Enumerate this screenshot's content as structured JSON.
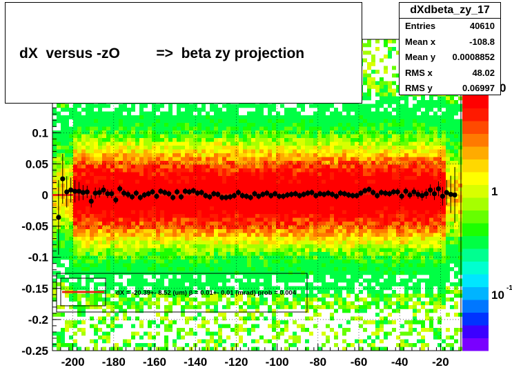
{
  "title": "dX  versus -zO         =>  beta zy projection",
  "stats": {
    "name": "dXdbeta_zy_17",
    "rows": [
      {
        "label": "Entries",
        "value": "40610"
      },
      {
        "label": "Mean x",
        "value": "-108.8"
      },
      {
        "label": "Mean y",
        "value": "0.0008852"
      },
      {
        "label": "RMS x",
        "value": "48.02"
      },
      {
        "label": "RMS y",
        "value": "0.06997"
      }
    ]
  },
  "legend": {
    "text": "dX = -20.39+- 8.52 (um) β =   0.01+- 0.01 (mrad) prob = 0.004"
  },
  "colors": {
    "fit_line": "#e8220c",
    "profile_points": "#000000",
    "frame": "#000000",
    "palette_low": "#7a00ff",
    "palette_high": "#ff0000"
  },
  "chart_data": {
    "type": "heatmap",
    "xlim": [
      -210,
      -10
    ],
    "ylim": [
      -0.25,
      0.25
    ],
    "x_ticks": [
      -200,
      -180,
      -160,
      -140,
      -120,
      -100,
      -80,
      -60,
      -40,
      -20
    ],
    "x_tick_labels": [
      "-200",
      "-180",
      "-160",
      "-140",
      "-120",
      "-100",
      "-80",
      "-60",
      "-40",
      "-20"
    ],
    "y_ticks": [
      -0.25,
      -0.2,
      -0.15,
      -0.1,
      -0.05,
      0,
      0.05,
      0.1
    ],
    "y_tick_labels": [
      "-0.25",
      "-0.2",
      "-0.15",
      "-0.1",
      "-0.05",
      "0",
      "0.05",
      "0.1"
    ],
    "color_scale": "log",
    "colorbar_labels": [
      {
        "value": 1,
        "label": "1"
      },
      {
        "value": 0.1,
        "label": "10"
      }
    ],
    "fit": {
      "intercept": 0.0,
      "slope": 1e-05
    },
    "profile": {
      "x": [
        -207,
        -205,
        -203,
        -201,
        -199,
        -197,
        -195,
        -193,
        -191,
        -189,
        -187,
        -185,
        -183,
        -181,
        -179,
        -177,
        -175,
        -173,
        -171,
        -169,
        -167,
        -165,
        -163,
        -161,
        -159,
        -157,
        -155,
        -153,
        -151,
        -149,
        -147,
        -145,
        -143,
        -141,
        -139,
        -137,
        -135,
        -133,
        -131,
        -129,
        -127,
        -125,
        -123,
        -121,
        -119,
        -117,
        -115,
        -113,
        -111,
        -109,
        -107,
        -105,
        -103,
        -101,
        -99,
        -97,
        -95,
        -93,
        -91,
        -89,
        -87,
        -85,
        -83,
        -81,
        -79,
        -77,
        -75,
        -73,
        -71,
        -69,
        -67,
        -65,
        -63,
        -61,
        -59,
        -57,
        -55,
        -53,
        -51,
        -49,
        -47,
        -45,
        -43,
        -41,
        -39,
        -37,
        -35,
        -33,
        -31,
        -29,
        -27,
        -25,
        -23,
        -21,
        -19,
        -17,
        -15,
        -13
      ],
      "y": [
        -0.036,
        0.026,
        0.005,
        0.008,
        0.006,
        0.006,
        0.004,
        0.005,
        -0.01,
        0.003,
        0.004,
        0.008,
        0.002,
        0.002,
        -0.008,
        0.01,
        0.003,
        0.001,
        -0.003,
        0.003,
        -0.004,
        0.0,
        0.002,
        0.005,
        -0.002,
        0.006,
        0.004,
        0.002,
        -0.004,
        0.005,
        -0.003,
        0.006,
        0.005,
        0.007,
        0.003,
        0.004,
        -0.001,
        -0.003,
        0.002,
        0.001,
        -0.004,
        -0.004,
        -0.003,
        -0.001,
        0.004,
        -0.001,
        -0.002,
        -0.004,
        0.002,
        -0.002,
        0.001,
        0.003,
        -0.001,
        0.002,
        -0.002,
        -0.002,
        0.0,
        0.001,
        0.002,
        -0.001,
        0.001,
        0.003,
        0.004,
        -0.001,
        0.002,
        0.001,
        0.003,
        0.001,
        -0.002,
        0.003,
        0.002,
        0.0,
        -0.001,
        -0.001,
        0.003,
        0.007,
        0.009,
        0.004,
        -0.001,
        0.004,
        0.003,
        0.002,
        0.005,
        0.005,
        -0.002,
        0.006,
        0.0,
        0.005,
        0.001,
        -0.001,
        0.002,
        0.008,
        0.002,
        0.01,
        -0.002,
        0.004,
        0.001,
        0.0
      ],
      "yerr": [
        0.06,
        0.04,
        0.025,
        0.02,
        0.018,
        0.015,
        0.012,
        0.01,
        0.01,
        0.009,
        0.008,
        0.008,
        0.007,
        0.007,
        0.006,
        0.006,
        0.006,
        0.006,
        0.005,
        0.005,
        0.005,
        0.005,
        0.005,
        0.005,
        0.005,
        0.005,
        0.005,
        0.005,
        0.005,
        0.005,
        0.005,
        0.005,
        0.005,
        0.005,
        0.005,
        0.005,
        0.005,
        0.005,
        0.005,
        0.005,
        0.005,
        0.005,
        0.005,
        0.005,
        0.005,
        0.005,
        0.005,
        0.005,
        0.005,
        0.005,
        0.005,
        0.005,
        0.005,
        0.005,
        0.005,
        0.005,
        0.005,
        0.005,
        0.005,
        0.005,
        0.005,
        0.005,
        0.005,
        0.005,
        0.005,
        0.005,
        0.005,
        0.005,
        0.005,
        0.005,
        0.005,
        0.005,
        0.005,
        0.005,
        0.005,
        0.005,
        0.005,
        0.005,
        0.005,
        0.005,
        0.005,
        0.005,
        0.005,
        0.006,
        0.006,
        0.006,
        0.006,
        0.007,
        0.007,
        0.008,
        0.008,
        0.009,
        0.01,
        0.012,
        0.015,
        0.02,
        0.03,
        0.045
      ]
    }
  }
}
